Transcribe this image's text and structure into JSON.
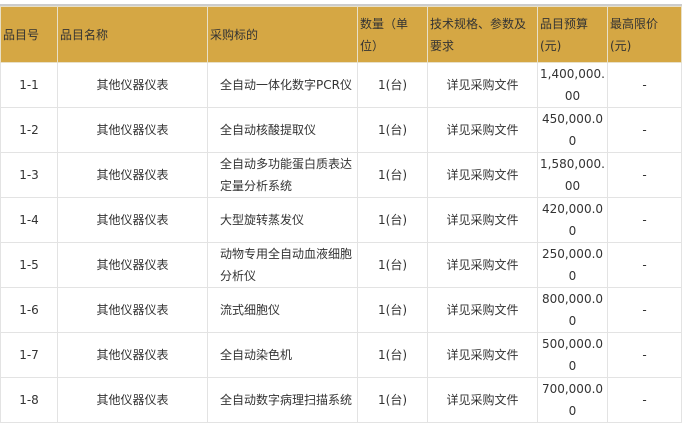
{
  "table": {
    "headers": [
      "品目号",
      "品目名称",
      "采购标的",
      "数量（单位）",
      "技术规格、参数及要求",
      "品目预算(元)",
      "最高限价(元)"
    ],
    "rows": [
      [
        "1-1",
        "其他仪器仪表",
        "全自动一体化数字PCR仪",
        "1(台)",
        "详见采购文件",
        "1,400,000.00",
        "-"
      ],
      [
        "1-2",
        "其他仪器仪表",
        "全自动核酸提取仪",
        "1(台)",
        "详见采购文件",
        "450,000.00",
        "-"
      ],
      [
        "1-3",
        "其他仪器仪表",
        "全自动多功能蛋白质表达定量分析系统",
        "1(台)",
        "详见采购文件",
        "1,580,000.00",
        "-"
      ],
      [
        "1-4",
        "其他仪器仪表",
        "大型旋转蒸发仪",
        "1(台)",
        "详见采购文件",
        "420,000.00",
        "-"
      ],
      [
        "1-5",
        "其他仪器仪表",
        "动物专用全自动血液细胞分析仪",
        "1(台)",
        "详见采购文件",
        "250,000.00",
        "-"
      ],
      [
        "1-6",
        "其他仪器仪表",
        "流式细胞仪",
        "1(台)",
        "详见采购文件",
        "800,000.00",
        "-"
      ],
      [
        "1-7",
        "其他仪器仪表",
        "全自动染色机",
        "1(台)",
        "详见采购文件",
        "500,000.00",
        "-"
      ],
      [
        "1-8",
        "其他仪器仪表",
        "全自动数字病理扫描系统",
        "1(台)",
        "详见采购文件",
        "700,000.00",
        "-"
      ]
    ]
  },
  "colors": {
    "header_bg": "#d5a744"
  }
}
